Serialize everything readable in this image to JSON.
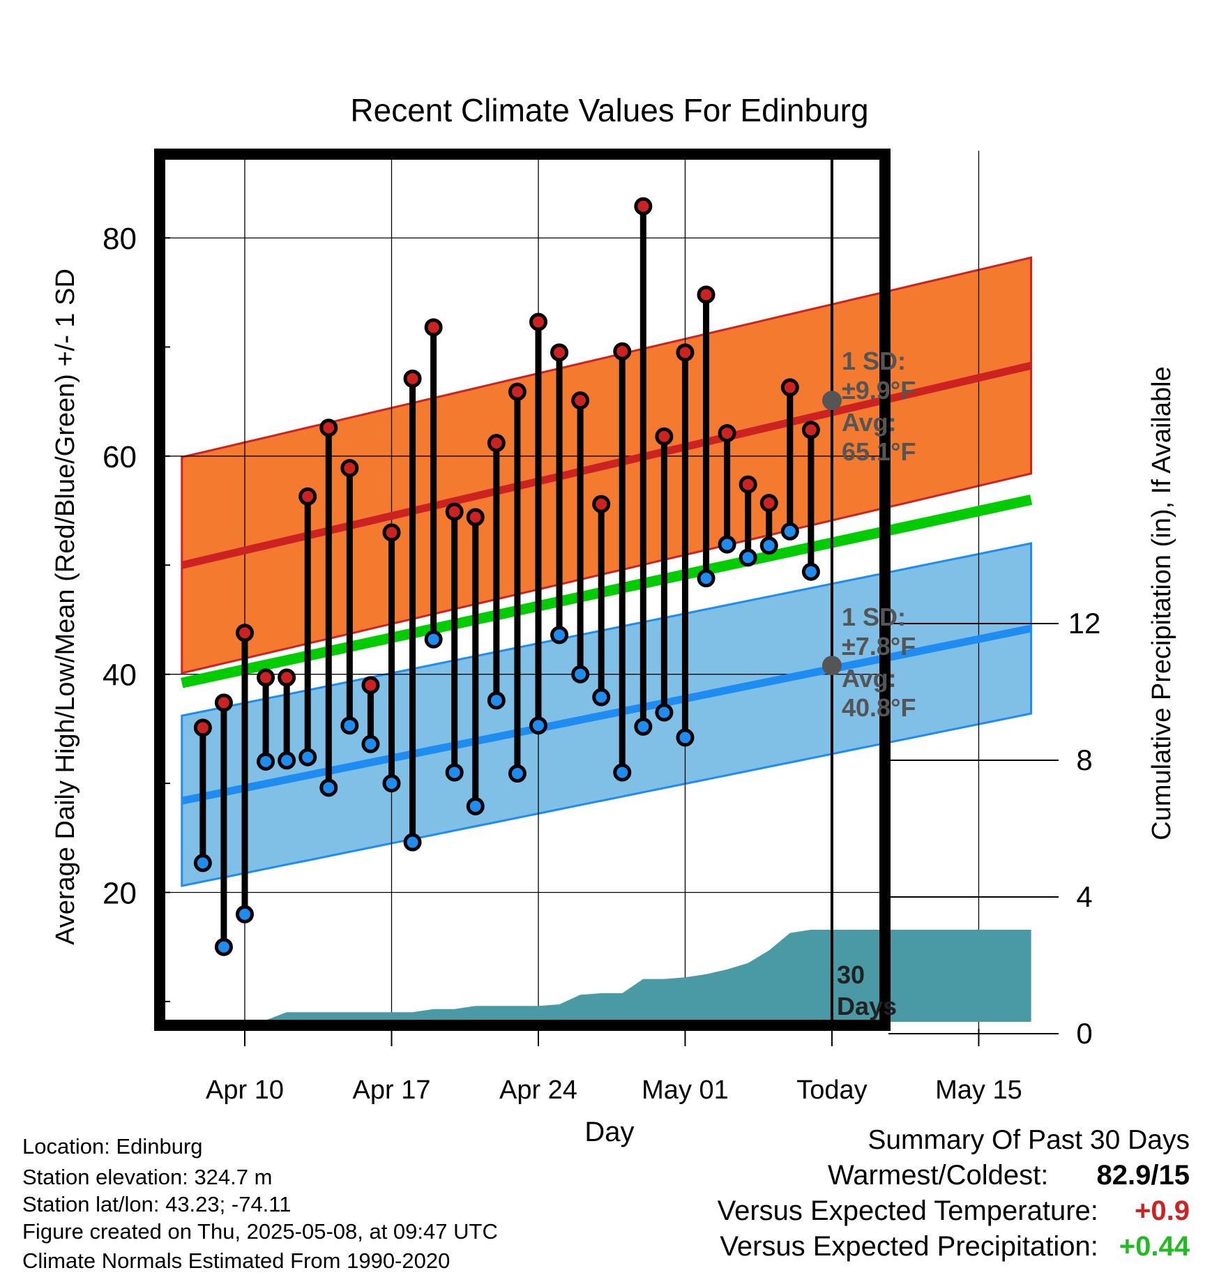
{
  "chart_data": {
    "type": "line",
    "title": "Recent Climate Values For Edinburg",
    "xlabel": "Day",
    "ylabel_left": "Average Daily High/Low/Mean (Red/Blue/Green) +/- 1 SD",
    "ylabel_right": "Cumulative Precipitation (in), If Available",
    "x_ticks": [
      {
        "day": 0,
        "label": "Apr 10"
      },
      {
        "day": 7,
        "label": "Apr 17"
      },
      {
        "day": 14,
        "label": "Apr 24"
      },
      {
        "day": 21,
        "label": "May 01"
      },
      {
        "day": 28,
        "label": "Today"
      },
      {
        "day": 35,
        "label": "May 15"
      }
    ],
    "xlim_days": [
      -3.3,
      37.6
    ],
    "ylim_left": [
      7.5,
      88
    ],
    "y_ticks_left": [
      20,
      40,
      60,
      80
    ],
    "ylim_right": [
      0,
      20.1
    ],
    "y_ticks_right": [
      0,
      4,
      8,
      12
    ],
    "grid": true,
    "days": [
      -2,
      -1,
      0,
      1,
      2,
      3,
      4,
      5,
      6,
      7,
      8,
      9,
      10,
      11,
      12,
      13,
      14,
      15,
      16,
      17,
      18,
      19,
      20,
      21,
      22,
      23,
      24,
      25,
      26,
      27
    ],
    "highs": [
      35.1,
      37.4,
      43.8,
      39.7,
      39.7,
      56.3,
      62.6,
      58.9,
      39,
      53,
      67.1,
      71.8,
      54.9,
      54.4,
      61.2,
      65.9,
      72.3,
      69.5,
      65.1,
      55.6,
      69.6,
      82.9,
      61.8,
      69.5,
      74.8,
      62.1,
      57.4,
      55.7,
      66.3,
      62.4
    ],
    "lows": [
      22.7,
      15,
      18,
      32,
      32.1,
      32.4,
      29.6,
      35.3,
      33.6,
      30,
      24.6,
      43.2,
      31,
      27.9,
      37.6,
      30.9,
      35.3,
      43.6,
      40,
      37.9,
      31,
      35.2,
      36.5,
      34.2,
      48.8,
      51.9,
      50.7,
      51.8,
      53.1,
      49.4
    ],
    "normal_high": {
      "x": [
        -3,
        37.5
      ],
      "y": [
        50.0,
        68.3
      ],
      "sd": 9.9
    },
    "normal_low": {
      "x": [
        -3,
        37.5
      ],
      "y": [
        28.4,
        44.2
      ],
      "sd": 7.8
    },
    "normal_mean": {
      "x": [
        -3,
        37.5
      ],
      "y": [
        39.2,
        56.0
      ]
    },
    "today_marker": {
      "day": 28,
      "avg_high": 65.1,
      "avg_low": 40.8
    },
    "precip_cumulative": {
      "x": [
        -3,
        0,
        1,
        2,
        3,
        4,
        5,
        6,
        7,
        8,
        9,
        10,
        11,
        12,
        13,
        14,
        15,
        16,
        17,
        18,
        19,
        20,
        21,
        22,
        23,
        24,
        25,
        26,
        27,
        28,
        37.5
      ],
      "y": [
        0,
        0,
        0.1,
        0.6,
        0.6,
        0.6,
        0.6,
        0.6,
        0.6,
        0.6,
        0.8,
        0.8,
        1.0,
        1.0,
        1.0,
        1.0,
        1.1,
        1.7,
        1.8,
        1.8,
        2.7,
        2.7,
        2.8,
        3.0,
        3.3,
        3.7,
        4.5,
        5.6,
        5.8,
        5.8,
        5.8
      ]
    },
    "colors": {
      "high": "#cc2222",
      "low": "#1e8cf0",
      "mean": "#00cc00",
      "high_band": "#f47a2f",
      "low_band": "#80bfe6",
      "precip": "#4a9aa5",
      "annotation": "#555555"
    }
  },
  "annotations": {
    "high_sd_label": "1 SD:",
    "high_sd_value": "±9.9°F",
    "high_avg_label": "Avg:",
    "high_avg_value": "65.1°F",
    "low_sd_label": "1 SD:",
    "low_sd_value": "±7.8°F",
    "low_avg_label": "Avg:",
    "low_avg_value": "40.8°F",
    "days_number": "30",
    "days_word": "Days"
  },
  "info": {
    "location": "Location: Edinburg",
    "elevation": "Station elevation: 324.7 m",
    "latlon": "Station lat/lon: 43.23; -74.11",
    "created": "Figure created on Thu, 2025-05-08, at 09:47 UTC",
    "normals": "Climate Normals Estimated From 1990-2020"
  },
  "summary": {
    "heading": "Summary Of Past 30 Days",
    "warmest_label": "Warmest/Coldest:",
    "warmest_value": "82.9/15",
    "temp_label": "Versus Expected Temperature:",
    "temp_value": "+0.9",
    "temp_color": "#cc2222",
    "precip_label": "Versus Expected Precipitation:",
    "precip_value": "+0.44",
    "precip_color": "#22bb22"
  }
}
